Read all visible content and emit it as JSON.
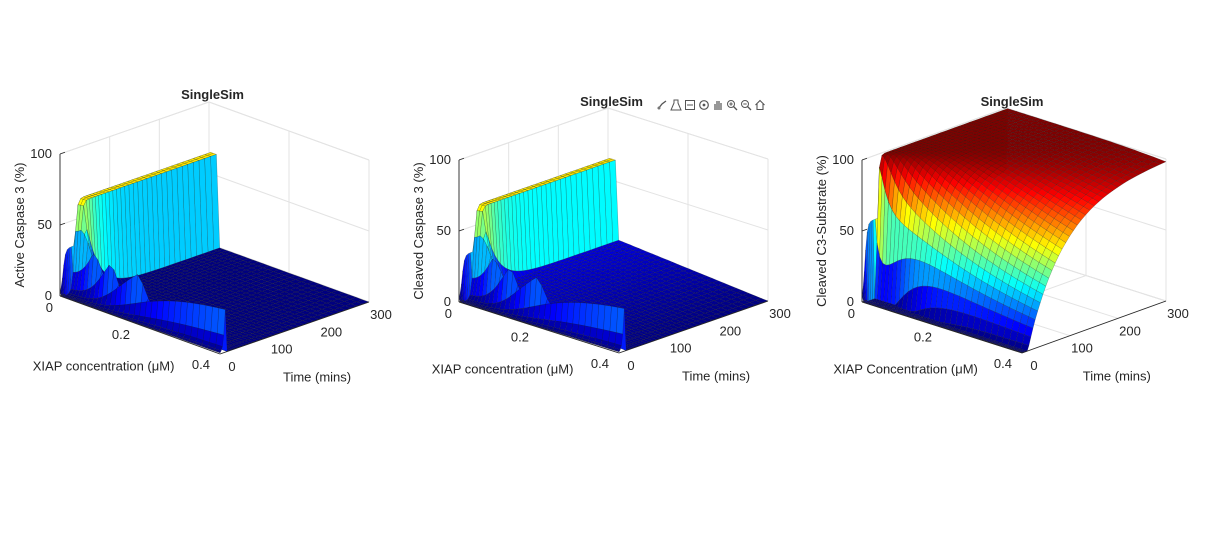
{
  "chart_data": [
    {
      "type": "surface",
      "title": "SingleSim",
      "xlabel": "XIAP concentration (μM)",
      "ylabel": "Time (mins)",
      "zlabel": "Active Caspase 3 (%)",
      "xlim": [
        0,
        0.4
      ],
      "ylim": [
        0,
        300
      ],
      "zlim": [
        0,
        100
      ],
      "xticks": [
        "0",
        "0.2",
        "0.4"
      ],
      "yticks": [
        "0",
        "100",
        "200",
        "300"
      ],
      "zticks": [
        "0",
        "50",
        "100"
      ],
      "colormap": "jet",
      "model": "transient",
      "peak_percent": 65,
      "low_xiap_plateau_percent": 32
    },
    {
      "type": "surface",
      "title": "SingleSim",
      "xlabel": "XIAP concentration (μM)",
      "ylabel": "Time (mins)",
      "zlabel": "Cleaved Caspase 3 (%)",
      "xlim": [
        0,
        0.4
      ],
      "ylim": [
        0,
        300
      ],
      "zlim": [
        0,
        100
      ],
      "xticks": [
        "0",
        "0.2",
        "0.4"
      ],
      "yticks": [
        "0",
        "100",
        "200",
        "300"
      ],
      "zticks": [
        "0",
        "50",
        "100"
      ],
      "colormap": "jet",
      "model": "partial",
      "peak_percent": 65,
      "residual_high_xiap_percent": 10
    },
    {
      "type": "surface",
      "title": "SingleSim",
      "xlabel": "XIAP Concentration (μM)",
      "ylabel": "Time (mins)",
      "zlabel": "Cleaved C3-Substrate (%)",
      "xlim": [
        0,
        0.4
      ],
      "ylim": [
        0,
        300
      ],
      "zlim": [
        0,
        100
      ],
      "xticks": [
        "0",
        "0.2",
        "0.4"
      ],
      "yticks": [
        "0",
        "100",
        "200",
        "300"
      ],
      "zticks": [
        "0",
        "50",
        "100"
      ],
      "colormap": "jet",
      "model": "saturating",
      "peak_percent": 100,
      "low_xiap_plateau_percent": 55
    }
  ],
  "toolbar": {
    "icons": [
      "brush-icon",
      "data-tips-icon",
      "legend-icon",
      "rotate-icon",
      "pan-icon",
      "zoom-in-icon",
      "zoom-out-icon",
      "home-icon"
    ]
  }
}
